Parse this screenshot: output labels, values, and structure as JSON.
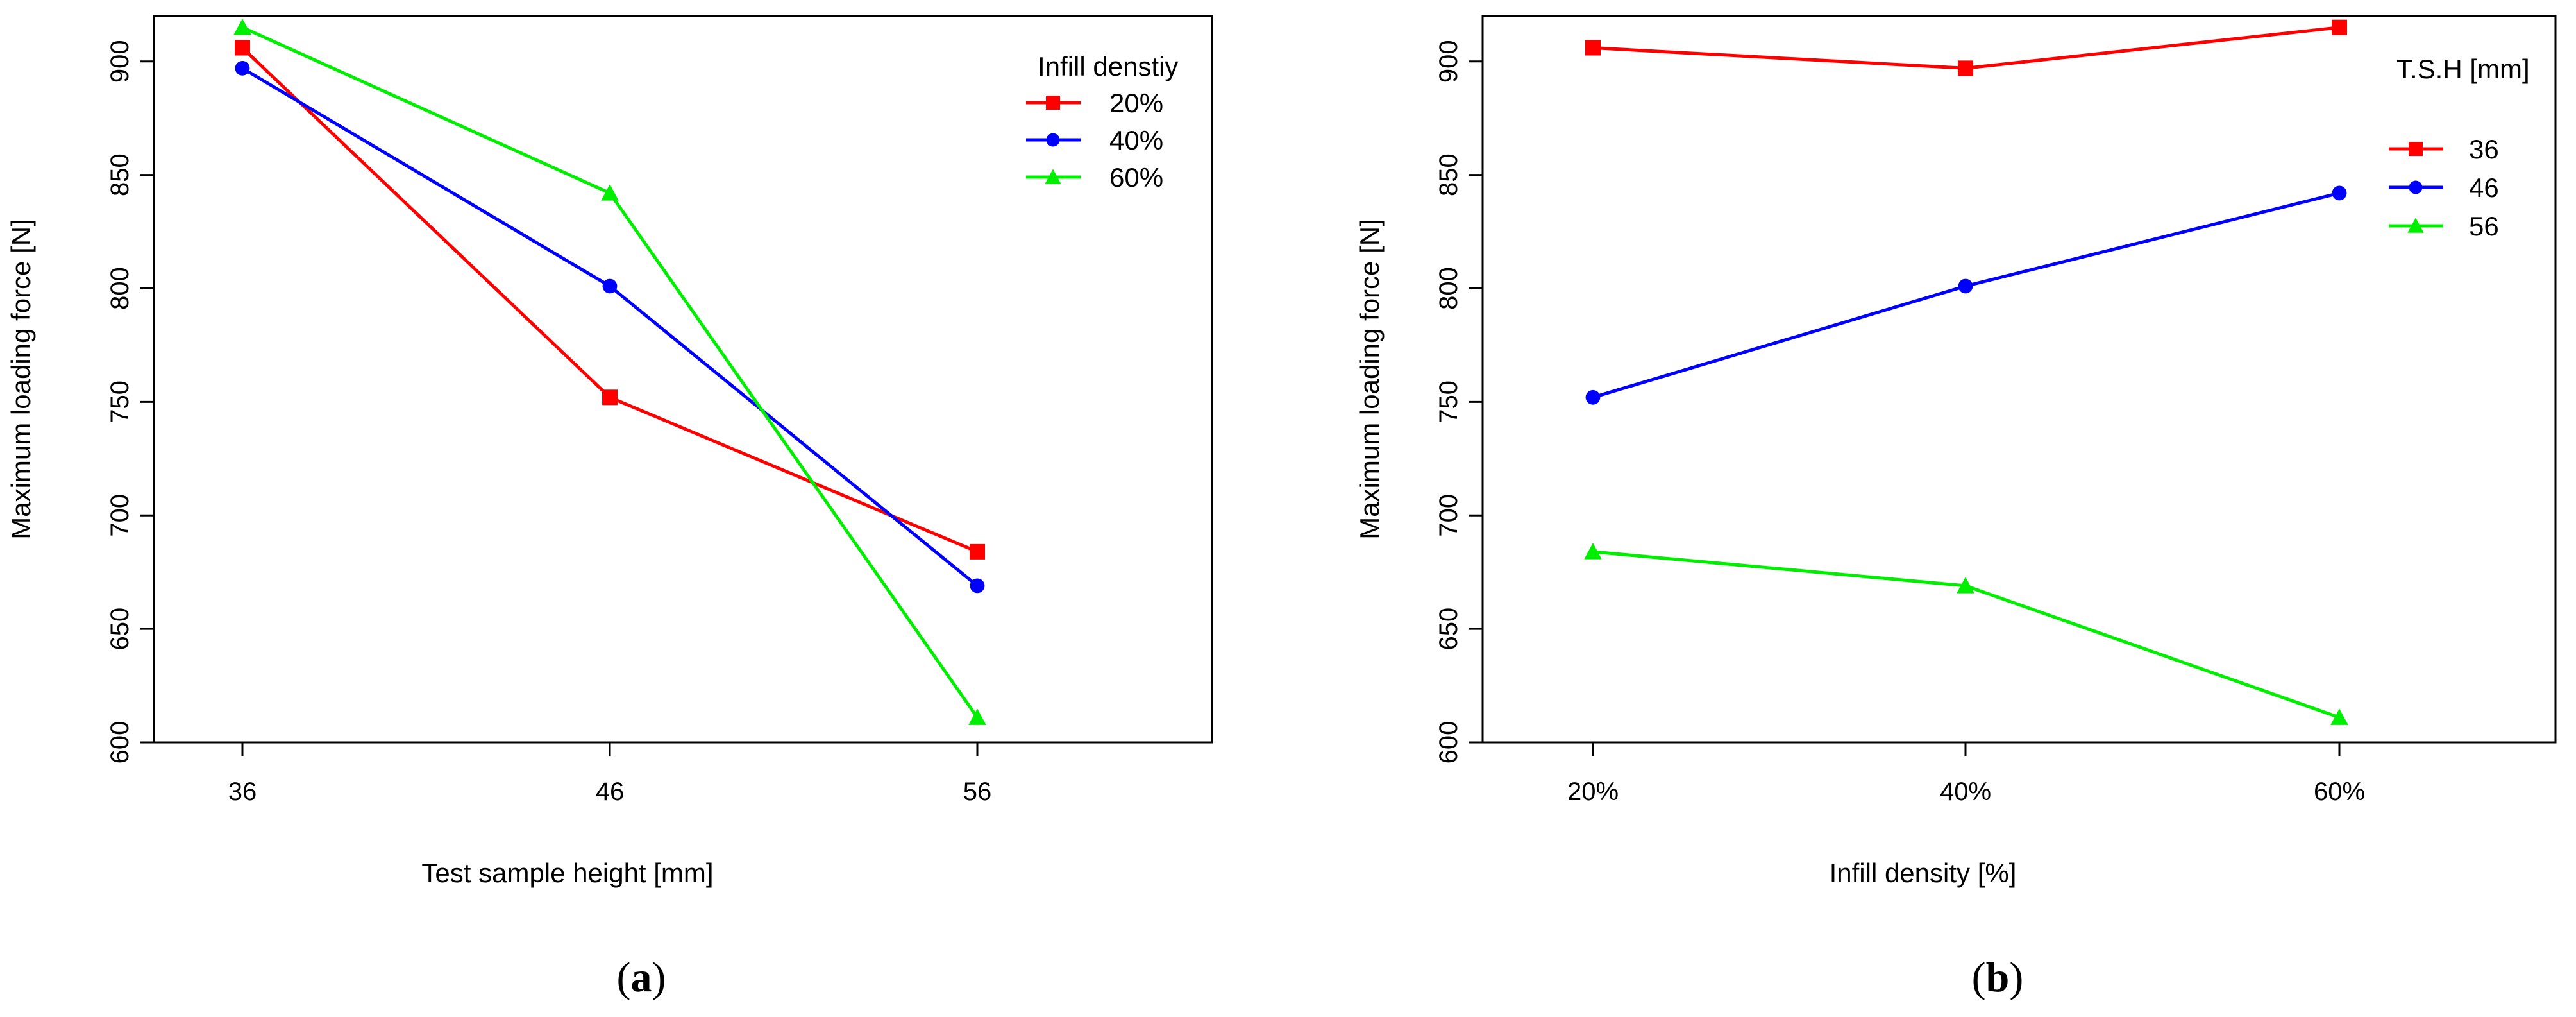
{
  "chart_data": [
    {
      "type": "line",
      "panel_label": "a",
      "title": "",
      "xlabel": "Test sample height [mm]",
      "ylabel": "Maximum loading force [N]",
      "categories": [
        "36",
        "46",
        "56"
      ],
      "ylim": [
        600,
        920
      ],
      "yticks": [
        600,
        650,
        700,
        750,
        800,
        850,
        900
      ],
      "legend_title": "Infill denstiy",
      "legend_position": "top-right",
      "grid": false,
      "series": [
        {
          "name": "20%",
          "color": "#ff0000",
          "marker": "square",
          "values": [
            906,
            752,
            684
          ]
        },
        {
          "name": "40%",
          "color": "#0000ff",
          "marker": "circle",
          "values": [
            897,
            801,
            669
          ]
        },
        {
          "name": "60%",
          "color": "#00ee00",
          "marker": "triangle",
          "values": [
            915,
            842,
            611
          ]
        }
      ]
    },
    {
      "type": "line",
      "panel_label": "b",
      "title": "",
      "xlabel": "Infill density [%]",
      "ylabel": "Maximum loading force [N]",
      "categories": [
        "20%",
        "40%",
        "60%"
      ],
      "ylim": [
        600,
        920
      ],
      "yticks": [
        600,
        650,
        700,
        750,
        800,
        850,
        900
      ],
      "legend_title": "T.S.H [mm]",
      "legend_position": "top-right",
      "grid": false,
      "series": [
        {
          "name": "36",
          "color": "#ff0000",
          "marker": "square",
          "values": [
            906,
            897,
            915
          ]
        },
        {
          "name": "46",
          "color": "#0000ff",
          "marker": "circle",
          "values": [
            752,
            801,
            842
          ]
        },
        {
          "name": "56",
          "color": "#00ee00",
          "marker": "triangle",
          "values": [
            684,
            669,
            611
          ]
        }
      ]
    }
  ]
}
